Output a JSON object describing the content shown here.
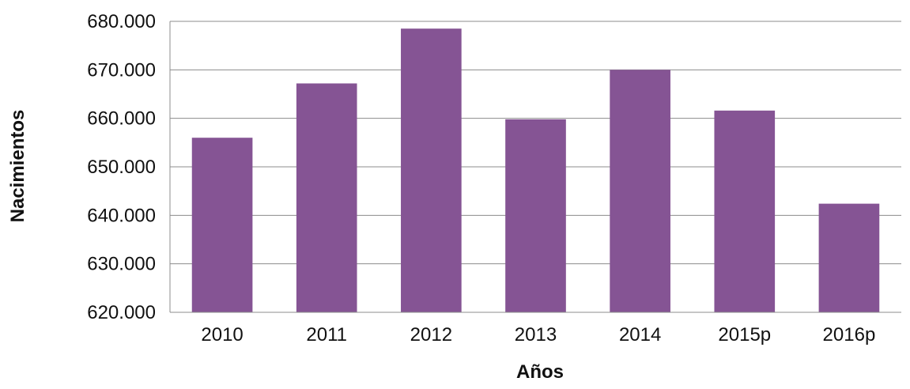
{
  "chart_data": {
    "type": "bar",
    "title": "",
    "xlabel": "Años",
    "ylabel": "Nacimientos",
    "categories": [
      "2010",
      "2011",
      "2012",
      "2013",
      "2014",
      "2015p",
      "2016p"
    ],
    "values": [
      656000,
      667200,
      678500,
      659800,
      670000,
      661600,
      642400
    ],
    "ylim": [
      620000,
      680000
    ],
    "yticks": [
      620000,
      630000,
      640000,
      650000,
      660000,
      670000,
      680000
    ],
    "ytick_labels": [
      "620.000",
      "630.000",
      "640.000",
      "650.000",
      "660.000",
      "670.000",
      "680.000"
    ],
    "grid": true,
    "legend": "none",
    "colors": {
      "bar": "#855494",
      "grid": "#8c8c8c",
      "axis": "#8c8c8c"
    }
  }
}
